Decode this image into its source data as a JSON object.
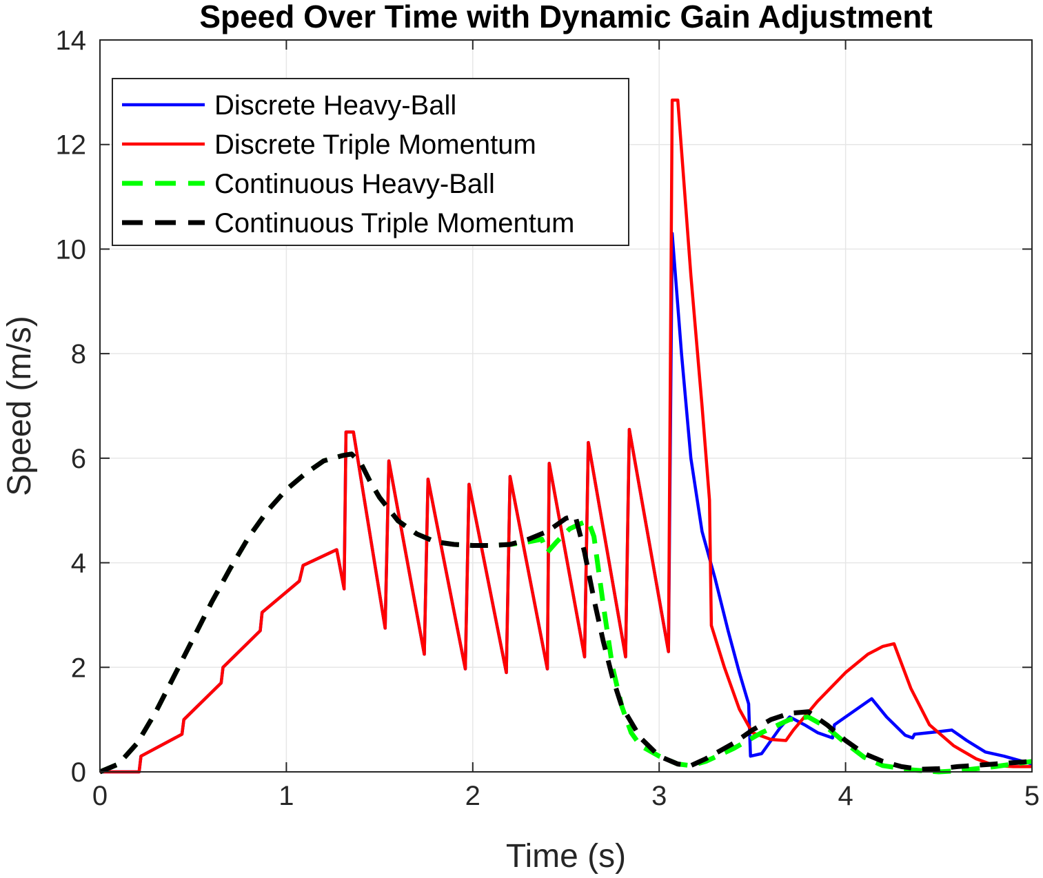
{
  "chart_data": {
    "type": "line",
    "title": "Speed Over Time with Dynamic Gain Adjustment",
    "xlabel": "Time (s)",
    "ylabel": "Speed (m/s)",
    "xlim": [
      0,
      5
    ],
    "ylim": [
      0,
      14
    ],
    "xticks": [
      0,
      1,
      2,
      3,
      4,
      5
    ],
    "yticks": [
      0,
      2,
      4,
      6,
      8,
      10,
      12,
      14
    ],
    "grid": true,
    "legend_position": "top-left",
    "series": [
      {
        "name": "Discrete Heavy-Ball",
        "color": "#0000ff",
        "dash": "solid",
        "points": [
          [
            0,
            0
          ],
          [
            0.21,
            0
          ],
          [
            0.22,
            0.3
          ],
          [
            0.44,
            0.72
          ],
          [
            0.45,
            1.0
          ],
          [
            0.65,
            1.7
          ],
          [
            0.66,
            2.0
          ],
          [
            0.86,
            2.7
          ],
          [
            0.87,
            3.05
          ],
          [
            1.07,
            3.65
          ],
          [
            1.09,
            3.95
          ],
          [
            1.27,
            4.25
          ],
          [
            1.31,
            3.5
          ],
          [
            1.32,
            6.5
          ],
          [
            1.36,
            6.5
          ],
          [
            1.53,
            2.75
          ],
          [
            1.55,
            5.95
          ],
          [
            1.74,
            2.25
          ],
          [
            1.76,
            5.6
          ],
          [
            1.96,
            1.97
          ],
          [
            1.98,
            5.5
          ],
          [
            2.18,
            1.9
          ],
          [
            2.2,
            5.65
          ],
          [
            2.4,
            1.97
          ],
          [
            2.41,
            5.9
          ],
          [
            2.6,
            2.2
          ],
          [
            2.62,
            6.3
          ],
          [
            2.82,
            2.2
          ],
          [
            2.84,
            6.55
          ],
          [
            3.05,
            2.3
          ],
          [
            3.07,
            10.3
          ],
          [
            3.12,
            8.0
          ],
          [
            3.17,
            6.0
          ],
          [
            3.23,
            4.6
          ],
          [
            3.3,
            3.7
          ],
          [
            3.37,
            2.7
          ],
          [
            3.43,
            1.9
          ],
          [
            3.48,
            1.3
          ],
          [
            3.49,
            0.3
          ],
          [
            3.55,
            0.35
          ],
          [
            3.65,
            0.85
          ],
          [
            3.7,
            1.05
          ],
          [
            3.78,
            0.9
          ],
          [
            3.85,
            0.75
          ],
          [
            3.93,
            0.65
          ],
          [
            3.94,
            0.9
          ],
          [
            4.0,
            1.05
          ],
          [
            4.14,
            1.4
          ],
          [
            4.22,
            1.05
          ],
          [
            4.32,
            0.7
          ],
          [
            4.36,
            0.65
          ],
          [
            4.37,
            0.72
          ],
          [
            4.5,
            0.77
          ],
          [
            4.57,
            0.8
          ],
          [
            4.65,
            0.6
          ],
          [
            4.75,
            0.38
          ],
          [
            4.85,
            0.3
          ],
          [
            5.0,
            0.15
          ]
        ]
      },
      {
        "name": "Discrete Triple Momentum",
        "color": "#ff0000",
        "dash": "solid",
        "points": [
          [
            0,
            0
          ],
          [
            0.21,
            0
          ],
          [
            0.22,
            0.3
          ],
          [
            0.44,
            0.72
          ],
          [
            0.45,
            1.0
          ],
          [
            0.65,
            1.7
          ],
          [
            0.66,
            2.0
          ],
          [
            0.86,
            2.7
          ],
          [
            0.87,
            3.05
          ],
          [
            1.07,
            3.65
          ],
          [
            1.09,
            3.95
          ],
          [
            1.27,
            4.25
          ],
          [
            1.31,
            3.5
          ],
          [
            1.32,
            6.5
          ],
          [
            1.36,
            6.5
          ],
          [
            1.53,
            2.75
          ],
          [
            1.55,
            5.95
          ],
          [
            1.74,
            2.25
          ],
          [
            1.76,
            5.6
          ],
          [
            1.96,
            1.97
          ],
          [
            1.98,
            5.5
          ],
          [
            2.18,
            1.9
          ],
          [
            2.2,
            5.65
          ],
          [
            2.4,
            1.97
          ],
          [
            2.41,
            5.9
          ],
          [
            2.6,
            2.2
          ],
          [
            2.62,
            6.3
          ],
          [
            2.82,
            2.2
          ],
          [
            2.84,
            6.55
          ],
          [
            3.05,
            2.3
          ],
          [
            3.07,
            12.85
          ],
          [
            3.1,
            12.85
          ],
          [
            3.17,
            9.5
          ],
          [
            3.23,
            7.0
          ],
          [
            3.27,
            5.2
          ],
          [
            3.28,
            2.8
          ],
          [
            3.35,
            2.0
          ],
          [
            3.43,
            1.2
          ],
          [
            3.5,
            0.75
          ],
          [
            3.6,
            0.62
          ],
          [
            3.68,
            0.6
          ],
          [
            3.72,
            0.8
          ],
          [
            3.85,
            1.35
          ],
          [
            4.0,
            1.9
          ],
          [
            4.12,
            2.25
          ],
          [
            4.2,
            2.4
          ],
          [
            4.26,
            2.45
          ],
          [
            4.35,
            1.6
          ],
          [
            4.45,
            0.9
          ],
          [
            4.58,
            0.5
          ],
          [
            4.7,
            0.25
          ],
          [
            4.8,
            0.12
          ],
          [
            4.9,
            0.1
          ],
          [
            5.0,
            0.1
          ]
        ]
      },
      {
        "name": "Continuous Heavy-Ball",
        "color": "#00ff00",
        "dash": "dashed",
        "points": [
          [
            0,
            0
          ],
          [
            0.1,
            0.15
          ],
          [
            0.2,
            0.55
          ],
          [
            0.3,
            1.15
          ],
          [
            0.4,
            1.85
          ],
          [
            0.5,
            2.55
          ],
          [
            0.6,
            3.25
          ],
          [
            0.7,
            3.9
          ],
          [
            0.8,
            4.5
          ],
          [
            0.9,
            5.0
          ],
          [
            1.0,
            5.4
          ],
          [
            1.1,
            5.7
          ],
          [
            1.2,
            5.95
          ],
          [
            1.3,
            6.05
          ],
          [
            1.35,
            6.08
          ],
          [
            1.4,
            5.9
          ],
          [
            1.45,
            5.55
          ],
          [
            1.5,
            5.25
          ],
          [
            1.6,
            4.8
          ],
          [
            1.7,
            4.55
          ],
          [
            1.8,
            4.4
          ],
          [
            1.9,
            4.35
          ],
          [
            2.0,
            4.33
          ],
          [
            2.1,
            4.33
          ],
          [
            2.2,
            4.35
          ],
          [
            2.3,
            4.4
          ],
          [
            2.37,
            4.45
          ],
          [
            2.4,
            4.2
          ],
          [
            2.45,
            4.4
          ],
          [
            2.52,
            4.65
          ],
          [
            2.58,
            4.75
          ],
          [
            2.62,
            4.8
          ],
          [
            2.65,
            4.5
          ],
          [
            2.7,
            3.2
          ],
          [
            2.75,
            2.0
          ],
          [
            2.8,
            1.25
          ],
          [
            2.85,
            0.75
          ],
          [
            2.9,
            0.5
          ],
          [
            3.0,
            0.3
          ],
          [
            3.1,
            0.15
          ],
          [
            3.17,
            0.12
          ],
          [
            3.25,
            0.2
          ],
          [
            3.4,
            0.45
          ],
          [
            3.55,
            0.75
          ],
          [
            3.7,
            1.0
          ],
          [
            3.8,
            1.05
          ],
          [
            3.9,
            0.85
          ],
          [
            4.0,
            0.55
          ],
          [
            4.1,
            0.28
          ],
          [
            4.2,
            0.12
          ],
          [
            4.35,
            0.04
          ],
          [
            4.5,
            0.0
          ],
          [
            4.6,
            0.02
          ],
          [
            4.8,
            0.1
          ],
          [
            5.0,
            0.2
          ]
        ]
      },
      {
        "name": "Continuous Triple Momentum",
        "color": "#000000",
        "dash": "dashed",
        "points": [
          [
            0,
            0
          ],
          [
            0.1,
            0.15
          ],
          [
            0.2,
            0.55
          ],
          [
            0.3,
            1.15
          ],
          [
            0.4,
            1.85
          ],
          [
            0.5,
            2.55
          ],
          [
            0.6,
            3.25
          ],
          [
            0.7,
            3.9
          ],
          [
            0.8,
            4.5
          ],
          [
            0.9,
            5.0
          ],
          [
            1.0,
            5.4
          ],
          [
            1.1,
            5.7
          ],
          [
            1.2,
            5.95
          ],
          [
            1.3,
            6.05
          ],
          [
            1.35,
            6.08
          ],
          [
            1.4,
            5.9
          ],
          [
            1.45,
            5.55
          ],
          [
            1.5,
            5.25
          ],
          [
            1.6,
            4.8
          ],
          [
            1.7,
            4.55
          ],
          [
            1.8,
            4.4
          ],
          [
            1.9,
            4.35
          ],
          [
            2.0,
            4.33
          ],
          [
            2.1,
            4.33
          ],
          [
            2.2,
            4.35
          ],
          [
            2.3,
            4.45
          ],
          [
            2.4,
            4.6
          ],
          [
            2.5,
            4.85
          ],
          [
            2.55,
            4.9
          ],
          [
            2.6,
            4.2
          ],
          [
            2.65,
            3.3
          ],
          [
            2.7,
            2.5
          ],
          [
            2.75,
            1.8
          ],
          [
            2.8,
            1.25
          ],
          [
            2.9,
            0.65
          ],
          [
            3.0,
            0.3
          ],
          [
            3.1,
            0.15
          ],
          [
            3.17,
            0.12
          ],
          [
            3.25,
            0.25
          ],
          [
            3.4,
            0.55
          ],
          [
            3.5,
            0.8
          ],
          [
            3.6,
            1.0
          ],
          [
            3.7,
            1.12
          ],
          [
            3.8,
            1.15
          ],
          [
            3.9,
            0.9
          ],
          [
            4.0,
            0.6
          ],
          [
            4.1,
            0.35
          ],
          [
            4.2,
            0.2
          ],
          [
            4.3,
            0.1
          ],
          [
            4.4,
            0.05
          ],
          [
            4.5,
            0.06
          ],
          [
            4.6,
            0.1
          ],
          [
            4.8,
            0.15
          ],
          [
            5.0,
            0.2
          ]
        ]
      }
    ]
  }
}
